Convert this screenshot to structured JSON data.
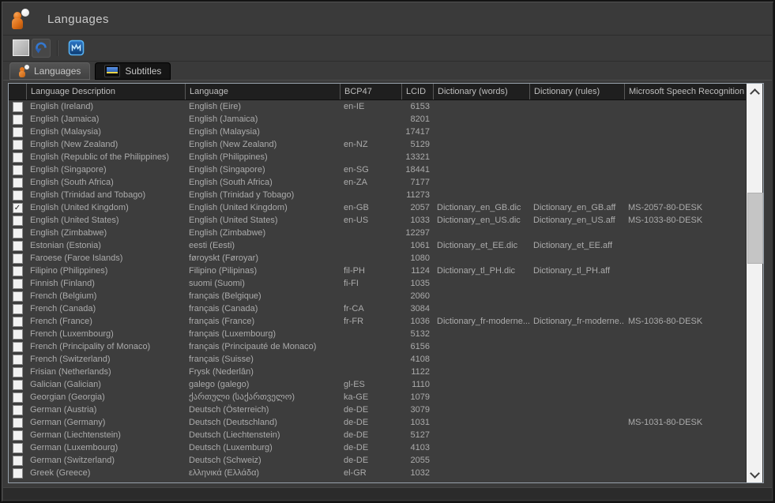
{
  "window": {
    "title": "Languages"
  },
  "colors": {
    "background": "#3a3a3a",
    "table_background": "#3d3d3d",
    "header_background": "#1f1f1f",
    "text": "#ababab",
    "accent_blue": "#3478d0",
    "accent_orange": "#e2751c",
    "monitor_yellow": "#e8d44a",
    "scrollbar_track": "#f2f2f2",
    "scrollbar_thumb": "#c5c5c5",
    "table_border": "#97a1ab"
  },
  "icons": {
    "check": "✓",
    "chevron_up": "chevron-up",
    "chevron_down": "chevron-down"
  },
  "tabs": [
    {
      "label": "Languages",
      "active": true
    },
    {
      "label": "Subtitles",
      "active": false
    }
  ],
  "table": {
    "columns": [
      "",
      "Language Description",
      "Language",
      "BCP47",
      "LCID",
      "Dictionary (words)",
      "Dictionary (rules)",
      "Microsoft Speech Recognition"
    ],
    "rows": [
      {
        "checked": false,
        "desc": "English (Ireland)",
        "lang": "English (Eire)",
        "bcp47": "en-IE",
        "lcid": "6153",
        "dic": "",
        "aff": "",
        "ms": ""
      },
      {
        "checked": false,
        "desc": "English (Jamaica)",
        "lang": "English (Jamaica)",
        "bcp47": "",
        "lcid": "8201",
        "dic": "",
        "aff": "",
        "ms": ""
      },
      {
        "checked": false,
        "desc": "English (Malaysia)",
        "lang": "English (Malaysia)",
        "bcp47": "",
        "lcid": "17417",
        "dic": "",
        "aff": "",
        "ms": ""
      },
      {
        "checked": false,
        "desc": "English (New Zealand)",
        "lang": "English (New Zealand)",
        "bcp47": "en-NZ",
        "lcid": "5129",
        "dic": "",
        "aff": "",
        "ms": ""
      },
      {
        "checked": false,
        "desc": "English (Republic of the Philippines)",
        "lang": "English (Philippines)",
        "bcp47": "",
        "lcid": "13321",
        "dic": "",
        "aff": "",
        "ms": ""
      },
      {
        "checked": false,
        "desc": "English (Singapore)",
        "lang": "English (Singapore)",
        "bcp47": "en-SG",
        "lcid": "18441",
        "dic": "",
        "aff": "",
        "ms": ""
      },
      {
        "checked": false,
        "desc": "English (South Africa)",
        "lang": "English (South Africa)",
        "bcp47": "en-ZA",
        "lcid": "7177",
        "dic": "",
        "aff": "",
        "ms": ""
      },
      {
        "checked": false,
        "desc": "English (Trinidad and Tobago)",
        "lang": "English (Trinidad y Tobago)",
        "bcp47": "",
        "lcid": "11273",
        "dic": "",
        "aff": "",
        "ms": ""
      },
      {
        "checked": true,
        "desc": "English (United Kingdom)",
        "lang": "English (United Kingdom)",
        "bcp47": "en-GB",
        "lcid": "2057",
        "dic": "Dictionary_en_GB.dic",
        "aff": "Dictionary_en_GB.aff",
        "ms": "MS-2057-80-DESK"
      },
      {
        "checked": false,
        "desc": "English (United States)",
        "lang": "English (United States)",
        "bcp47": "en-US",
        "lcid": "1033",
        "dic": "Dictionary_en_US.dic",
        "aff": "Dictionary_en_US.aff",
        "ms": "MS-1033-80-DESK"
      },
      {
        "checked": false,
        "desc": "English (Zimbabwe)",
        "lang": "English (Zimbabwe)",
        "bcp47": "",
        "lcid": "12297",
        "dic": "",
        "aff": "",
        "ms": ""
      },
      {
        "checked": false,
        "desc": "Estonian (Estonia)",
        "lang": "eesti (Eesti)",
        "bcp47": "",
        "lcid": "1061",
        "dic": "Dictionary_et_EE.dic",
        "aff": "Dictionary_et_EE.aff",
        "ms": ""
      },
      {
        "checked": false,
        "desc": "Faroese (Faroe Islands)",
        "lang": "føroyskt (Føroyar)",
        "bcp47": "",
        "lcid": "1080",
        "dic": "",
        "aff": "",
        "ms": ""
      },
      {
        "checked": false,
        "desc": "Filipino (Philippines)",
        "lang": "Filipino (Pilipinas)",
        "bcp47": "fil-PH",
        "lcid": "1124",
        "dic": "Dictionary_tl_PH.dic",
        "aff": "Dictionary_tl_PH.aff",
        "ms": ""
      },
      {
        "checked": false,
        "desc": "Finnish (Finland)",
        "lang": "suomi (Suomi)",
        "bcp47": "fi-FI",
        "lcid": "1035",
        "dic": "",
        "aff": "",
        "ms": ""
      },
      {
        "checked": false,
        "desc": "French (Belgium)",
        "lang": "français (Belgique)",
        "bcp47": "",
        "lcid": "2060",
        "dic": "",
        "aff": "",
        "ms": ""
      },
      {
        "checked": false,
        "desc": "French (Canada)",
        "lang": "français (Canada)",
        "bcp47": "fr-CA",
        "lcid": "3084",
        "dic": "",
        "aff": "",
        "ms": ""
      },
      {
        "checked": false,
        "desc": "French (France)",
        "lang": "français (France)",
        "bcp47": "fr-FR",
        "lcid": "1036",
        "dic": "Dictionary_fr-moderne....",
        "aff": "Dictionary_fr-moderne....",
        "ms": "MS-1036-80-DESK"
      },
      {
        "checked": false,
        "desc": "French (Luxembourg)",
        "lang": "français (Luxembourg)",
        "bcp47": "",
        "lcid": "5132",
        "dic": "",
        "aff": "",
        "ms": ""
      },
      {
        "checked": false,
        "desc": "French (Principality of Monaco)",
        "lang": "français (Principauté de Monaco)",
        "bcp47": "",
        "lcid": "6156",
        "dic": "",
        "aff": "",
        "ms": ""
      },
      {
        "checked": false,
        "desc": "French (Switzerland)",
        "lang": "français (Suisse)",
        "bcp47": "",
        "lcid": "4108",
        "dic": "",
        "aff": "",
        "ms": ""
      },
      {
        "checked": false,
        "desc": "Frisian (Netherlands)",
        "lang": "Frysk (Nederlân)",
        "bcp47": "",
        "lcid": "1122",
        "dic": "",
        "aff": "",
        "ms": ""
      },
      {
        "checked": false,
        "desc": "Galician (Galician)",
        "lang": "galego (galego)",
        "bcp47": "gl-ES",
        "lcid": "1110",
        "dic": "",
        "aff": "",
        "ms": ""
      },
      {
        "checked": false,
        "desc": "Georgian (Georgia)",
        "lang": "ქართული (საქართველო)",
        "bcp47": "ka-GE",
        "lcid": "1079",
        "dic": "",
        "aff": "",
        "ms": ""
      },
      {
        "checked": false,
        "desc": "German (Austria)",
        "lang": "Deutsch (Österreich)",
        "bcp47": "de-DE",
        "lcid": "3079",
        "dic": "",
        "aff": "",
        "ms": ""
      },
      {
        "checked": false,
        "desc": "German (Germany)",
        "lang": "Deutsch (Deutschland)",
        "bcp47": "de-DE",
        "lcid": "1031",
        "dic": "",
        "aff": "",
        "ms": "MS-1031-80-DESK"
      },
      {
        "checked": false,
        "desc": "German (Liechtenstein)",
        "lang": "Deutsch (Liechtenstein)",
        "bcp47": "de-DE",
        "lcid": "5127",
        "dic": "",
        "aff": "",
        "ms": ""
      },
      {
        "checked": false,
        "desc": "German (Luxembourg)",
        "lang": "Deutsch (Luxemburg)",
        "bcp47": "de-DE",
        "lcid": "4103",
        "dic": "",
        "aff": "",
        "ms": ""
      },
      {
        "checked": false,
        "desc": "German (Switzerland)",
        "lang": "Deutsch (Schweiz)",
        "bcp47": "de-DE",
        "lcid": "2055",
        "dic": "",
        "aff": "",
        "ms": ""
      },
      {
        "checked": false,
        "desc": "Greek (Greece)",
        "lang": "ελληνικά (Ελλάδα)",
        "bcp47": "el-GR",
        "lcid": "1032",
        "dic": "",
        "aff": "",
        "ms": ""
      }
    ]
  }
}
